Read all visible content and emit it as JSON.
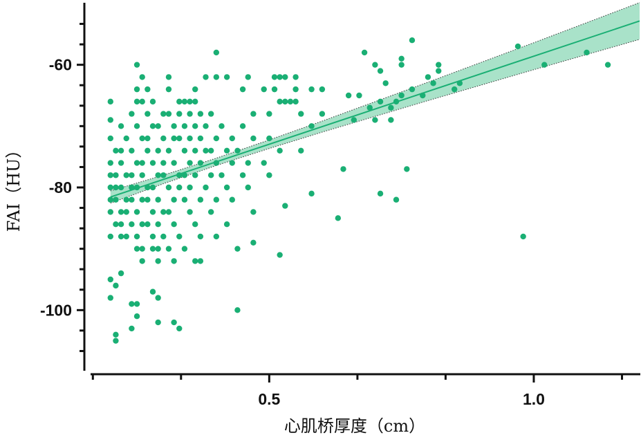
{
  "chart_data": {
    "type": "scatter",
    "x_label": "心肌桥厚度（cm）",
    "y_label": "FAI（HU）",
    "xlim": [
      0.165,
      1.2
    ],
    "ylim": [
      -110,
      -50
    ],
    "xticks": [
      0.5,
      {
        "value": 1,
        "label": "1.0"
      }
    ],
    "xticks_minor": [
      0.1667,
      0.3333,
      0.6667,
      0.8333,
      1.1667
    ],
    "yticks": [
      -60,
      -80,
      -100
    ],
    "yticks_minor": [
      -53.33,
      -56.67,
      -63.33,
      -66.67,
      -70,
      -73.33,
      -76.67,
      -83.33,
      -86.67,
      -90,
      -93.33,
      -96.67,
      -103.33,
      -106.67
    ],
    "color": "#1aaf74",
    "series": [
      {
        "x": [
          0.2,
          0.25,
          0.26,
          0.28,
          0.33,
          0.34,
          0.35,
          0.36,
          0.52,
          0.53,
          0.54,
          0.55,
          0.24,
          0.27,
          0.3,
          0.31,
          0.33,
          0.35,
          0.37,
          0.39,
          0.47,
          0.5,
          0.56,
          0.6,
          0.22,
          0.25,
          0.28,
          0.29,
          0.32,
          0.34,
          0.36,
          0.38,
          0.41,
          0.45,
          0.58,
          0.2,
          0.23,
          0.26,
          0.27,
          0.3,
          0.32,
          0.33,
          0.35,
          0.37,
          0.4,
          0.43,
          0.47,
          0.5,
          0.21,
          0.22,
          0.24,
          0.27,
          0.29,
          0.31,
          0.34,
          0.36,
          0.38,
          0.39,
          0.42,
          0.44,
          0.52,
          0.56,
          0.2,
          0.22,
          0.25,
          0.26,
          0.28,
          0.3,
          0.32,
          0.35,
          0.37,
          0.4,
          0.43,
          0.46,
          0.49,
          0.2,
          0.21,
          0.23,
          0.24,
          0.26,
          0.29,
          0.3,
          0.33,
          0.34,
          0.36,
          0.39,
          0.41,
          0.45,
          0.5,
          0.2,
          0.21,
          0.22,
          0.24,
          0.25,
          0.27,
          0.28,
          0.31,
          0.33,
          0.35,
          0.38,
          0.42,
          0.46,
          0.2,
          0.21,
          0.23,
          0.24,
          0.26,
          0.27,
          0.29,
          0.32,
          0.34,
          0.37,
          0.4,
          0.43,
          0.2,
          0.22,
          0.23,
          0.25,
          0.28,
          0.3,
          0.31,
          0.35,
          0.39,
          0.47,
          0.21,
          0.22,
          0.24,
          0.26,
          0.27,
          0.29,
          0.32,
          0.36,
          0.42,
          0.2,
          0.22,
          0.23,
          0.25,
          0.28,
          0.3,
          0.33,
          0.37,
          0.4,
          0.25,
          0.26,
          0.28,
          0.29,
          0.31,
          0.34,
          0.26,
          0.29,
          0.32,
          0.36,
          0.37,
          0.25,
          0.27,
          0.31,
          0.36,
          0.45,
          0.49,
          0.51,
          0.55,
          0.58,
          0.6,
          0.26,
          0.46,
          0.51,
          0.52,
          0.53,
          0.55,
          0.2,
          0.2,
          0.21,
          0.21,
          0.21,
          0.22,
          0.24,
          0.25,
          0.25,
          0.24,
          0.28,
          0.29,
          0.29,
          0.32,
          0.33,
          0.44,
          0.25,
          0.2,
          0.4,
          0.4,
          0.42,
          0.38,
          0.31,
          0.44,
          0.47,
          0.52,
          0.53,
          0.63,
          0.58,
          0.71,
          0.74,
          0.76,
          0.64,
          0.7,
          0.71,
          0.68,
          0.75,
          0.75,
          0.77,
          0.97,
          1.02,
          1.1,
          1.14,
          0.98,
          0.82,
          0.82,
          0.8,
          0.81,
          0.79,
          0.77,
          0.75,
          0.74,
          0.73,
          0.73,
          0.71,
          0.69,
          0.72,
          0.86,
          0.85,
          0.7,
          0.66,
          0.67,
          0.65
        ],
        "y": [
          -66,
          -66,
          -66,
          -66,
          -66,
          -66,
          -66,
          -66,
          -66,
          -66,
          -66,
          -66,
          -68,
          -68,
          -68,
          -68,
          -68,
          -68,
          -68,
          -68,
          -68,
          -68,
          -68,
          -68,
          -70,
          -70,
          -70,
          -70,
          -70,
          -70,
          -70,
          -70,
          -70,
          -70,
          -70,
          -72,
          -72,
          -72,
          -72,
          -72,
          -72,
          -72,
          -72,
          -72,
          -72,
          -72,
          -72,
          -72,
          -74,
          -74,
          -74,
          -74,
          -74,
          -74,
          -74,
          -74,
          -74,
          -74,
          -74,
          -74,
          -74,
          -74,
          -76,
          -76,
          -76,
          -76,
          -76,
          -76,
          -76,
          -76,
          -76,
          -76,
          -76,
          -76,
          -76,
          -78,
          -78,
          -78,
          -78,
          -78,
          -78,
          -78,
          -78,
          -78,
          -78,
          -78,
          -78,
          -78,
          -78,
          -80,
          -80,
          -80,
          -80,
          -80,
          -80,
          -80,
          -80,
          -80,
          -80,
          -80,
          -80,
          -80,
          -82,
          -82,
          -82,
          -82,
          -82,
          -82,
          -82,
          -82,
          -82,
          -82,
          -82,
          -82,
          -84,
          -84,
          -84,
          -84,
          -84,
          -84,
          -84,
          -84,
          -84,
          -84,
          -86,
          -86,
          -86,
          -86,
          -86,
          -86,
          -86,
          -86,
          -86,
          -88,
          -88,
          -88,
          -88,
          -88,
          -88,
          -88,
          -88,
          -88,
          -90,
          -90,
          -90,
          -90,
          -90,
          -90,
          -92,
          -92,
          -92,
          -92,
          -92,
          -64,
          -64,
          -64,
          -64,
          -64,
          -64,
          -64,
          -64,
          -64,
          -64,
          -62,
          -62,
          -62,
          -62,
          -62,
          -62,
          -95,
          -98,
          -104,
          -105,
          -96,
          -94,
          -99,
          -99,
          -101,
          -103,
          -97,
          -98,
          -102,
          -102,
          -103,
          -100,
          -60,
          -69,
          -58,
          -62,
          -62,
          -62,
          -62,
          -90,
          -89,
          -91,
          -83,
          -85,
          -81,
          -81,
          -82,
          -77,
          -77,
          -60,
          -61,
          -58,
          -59,
          -60,
          -56,
          -57,
          -60,
          -58,
          -60,
          -88,
          -60,
          -61,
          -62,
          -63,
          -65,
          -64,
          -65,
          -66,
          -67,
          -69,
          -66,
          -67,
          -63,
          -63,
          -64,
          -69,
          -69,
          -65,
          -65
        ]
      }
    ],
    "fit": {
      "x": [
        0.2,
        1.2
      ],
      "y": [
        -81.56,
        -52.86
      ]
    },
    "ci": {
      "x": [
        0.2,
        0.3,
        0.4,
        0.5,
        0.6,
        0.8,
        1.0,
        1.2
      ],
      "lower": [
        -82.56,
        -79.39,
        -76.42,
        -73.65,
        -70.98,
        -65.84,
        -60.8,
        -55.86
      ],
      "upper": [
        -80.56,
        -77.99,
        -75.22,
        -72.25,
        -69.18,
        -62.84,
        -56.4,
        -49.86
      ]
    }
  }
}
